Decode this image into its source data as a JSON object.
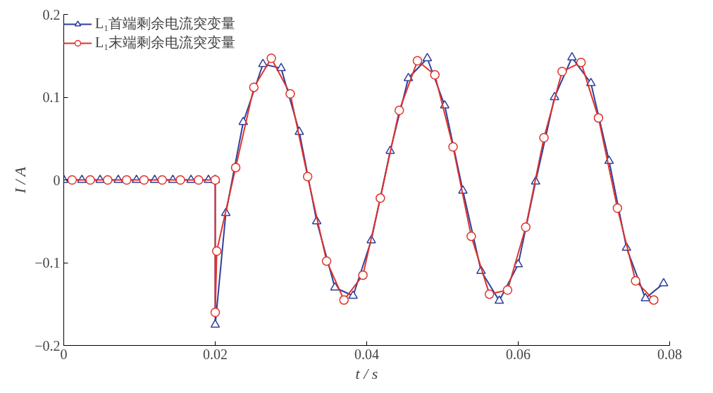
{
  "chart_data": {
    "type": "line",
    "xlabel": "t / s",
    "ylabel": "I / A",
    "xlim": [
      0,
      0.08
    ],
    "ylim": [
      -0.2,
      0.2
    ],
    "xticks": [
      0,
      0.02,
      0.04,
      0.06,
      0.08
    ],
    "yticks": [
      -0.2,
      -0.1,
      0,
      0.1,
      0.2
    ],
    "grid": false,
    "legend": "top left",
    "series": [
      {
        "name": "L₁首端剩余电流突变量",
        "color": "#2e3f9c",
        "marker": "triangle",
        "x": [
          0,
          0.0024,
          0.0048,
          0.0072,
          0.0096,
          0.012,
          0.0144,
          0.0168,
          0.0191,
          0.02,
          0.02,
          0.0214,
          0.0237,
          0.0263,
          0.0287,
          0.0311,
          0.0334,
          0.0358,
          0.0382,
          0.0406,
          0.0431,
          0.0455,
          0.048,
          0.0503,
          0.0527,
          0.0551,
          0.0575,
          0.06,
          0.0623,
          0.0648,
          0.0671,
          0.0696,
          0.072,
          0.0743,
          0.0768,
          0.0792
        ],
        "values": [
          0,
          0,
          0,
          0,
          0,
          0,
          0,
          0,
          0,
          0,
          -0.175,
          -0.04,
          0.07,
          0.14,
          0.135,
          0.058,
          -0.05,
          -0.13,
          -0.14,
          -0.073,
          0.035,
          0.123,
          0.147,
          0.09,
          -0.013,
          -0.11,
          -0.146,
          -0.102,
          -0.002,
          0.1,
          0.148,
          0.117,
          0.023,
          -0.082,
          -0.143,
          -0.125
        ]
      },
      {
        "name": "L₁末端剩余电流突变量",
        "color": "#e0322b",
        "marker": "circle",
        "x": [
          0.0011,
          0.0035,
          0.0058,
          0.0083,
          0.0106,
          0.013,
          0.0154,
          0.0178,
          0.02,
          0.02,
          0.0202,
          0.0227,
          0.0251,
          0.0274,
          0.0299,
          0.0322,
          0.0347,
          0.037,
          0.0395,
          0.0418,
          0.0443,
          0.0467,
          0.049,
          0.0514,
          0.0538,
          0.0562,
          0.0586,
          0.061,
          0.0634,
          0.0658,
          0.0683,
          0.0706,
          0.0731,
          0.0755,
          0.0779
        ],
        "values": [
          0,
          0,
          0,
          0,
          0,
          0,
          0,
          0,
          0,
          -0.16,
          -0.086,
          0.015,
          0.112,
          0.147,
          0.104,
          0.004,
          -0.098,
          -0.145,
          -0.115,
          -0.022,
          0.084,
          0.144,
          0.127,
          0.04,
          -0.068,
          -0.138,
          -0.133,
          -0.057,
          0.051,
          0.131,
          0.142,
          0.075,
          -0.034,
          -0.122,
          -0.145
        ]
      }
    ]
  }
}
